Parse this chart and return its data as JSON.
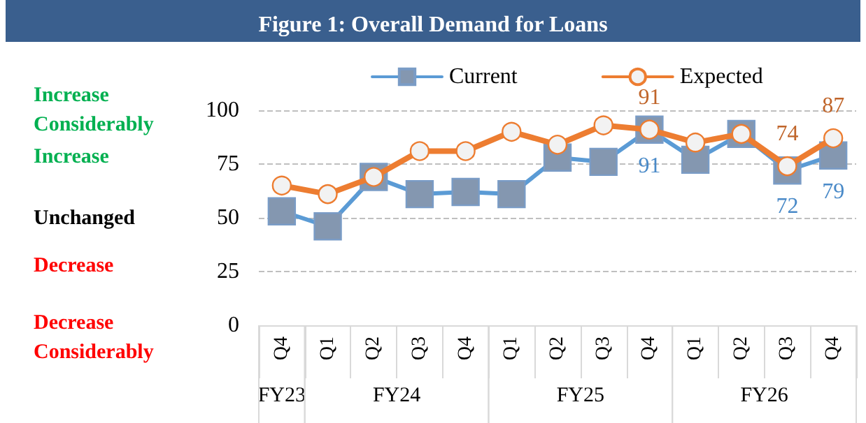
{
  "chart_data": {
    "type": "line",
    "title": "Figure 1: Overall Demand for Loans",
    "categories": [
      "Q4",
      "Q1",
      "Q2",
      "Q3",
      "Q4",
      "Q1",
      "Q2",
      "Q3",
      "Q4",
      "Q1",
      "Q2",
      "Q3",
      "Q4"
    ],
    "series": [
      {
        "name": "Current",
        "color": "#5b9bd5",
        "marker": "square",
        "values": [
          53,
          46,
          69,
          61,
          62,
          61,
          78,
          76,
          91,
          77,
          89,
          72,
          79
        ],
        "value_labels": [
          null,
          null,
          null,
          null,
          null,
          null,
          null,
          null,
          "91",
          null,
          null,
          "72",
          "79"
        ]
      },
      {
        "name": "Expected",
        "color": "#ed7d31",
        "marker": "circle",
        "values": [
          65,
          61,
          69,
          81,
          81,
          90,
          84,
          93,
          91,
          85,
          89,
          74,
          87
        ],
        "value_labels": [
          null,
          null,
          null,
          null,
          null,
          null,
          null,
          null,
          "91",
          null,
          null,
          "74",
          "87"
        ]
      }
    ],
    "ylim": [
      0,
      100
    ],
    "yticks": [
      0,
      25,
      50,
      75,
      100
    ],
    "grid": "y",
    "legend": "top",
    "annotations": [
      "Increase Considerably",
      "Increase",
      "Unchanged",
      "Decrease",
      "Decrease Considerably",
      "FY23",
      "FY24",
      "FY25",
      "FY26"
    ]
  }
}
